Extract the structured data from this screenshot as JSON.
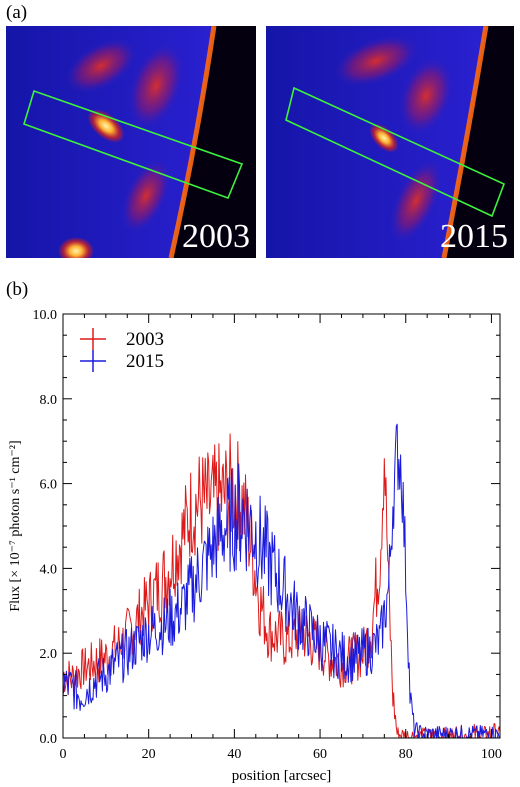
{
  "panel_a": {
    "label": "(a)",
    "images": [
      {
        "year": "2003"
      },
      {
        "year": "2015"
      }
    ],
    "colors": {
      "background": "#050010",
      "map_low": "#1a1ad0",
      "map_mid": "#e02020",
      "map_high": "#fff3a0",
      "box": "#3cf23c"
    }
  },
  "chart_data": {
    "type": "line",
    "panel_label": "(b)",
    "xlabel": "position [arcsec]",
    "ylabel": "Flux [× 10⁻⁷ photon s⁻¹ cm⁻²]",
    "xlim": [
      0,
      102
    ],
    "ylim": [
      0,
      10
    ],
    "x_ticks": [
      0,
      20,
      40,
      60,
      80,
      100
    ],
    "y_ticks": [
      0,
      2,
      4,
      6,
      8,
      10
    ],
    "x_tick_labels": [
      "0",
      "20",
      "40",
      "60",
      "80",
      "100"
    ],
    "y_tick_labels": [
      "0.0",
      "2.0",
      "4.0",
      "6.0",
      "8.0",
      "10.0"
    ],
    "legend": "top-left",
    "grid": false,
    "series": [
      {
        "name": "2003",
        "color": "#dd1a1a",
        "x": [
          0,
          2,
          4,
          6,
          8,
          10,
          12,
          14,
          16,
          18,
          20,
          22,
          24,
          26,
          28,
          30,
          32,
          34,
          36,
          38,
          40,
          42,
          44,
          46,
          48,
          50,
          52,
          54,
          56,
          58,
          60,
          62,
          64,
          66,
          68,
          70,
          72,
          74,
          75,
          76,
          77,
          78,
          80,
          82,
          84,
          86,
          88,
          90,
          92,
          94,
          96,
          98,
          100,
          102
        ],
        "y": [
          1.5,
          1.4,
          1.6,
          1.7,
          1.8,
          1.9,
          2.1,
          2.3,
          2.6,
          2.9,
          3.2,
          3.5,
          3.8,
          4.3,
          4.8,
          5.4,
          5.6,
          5.5,
          5.6,
          5.7,
          5.9,
          5.5,
          4.5,
          3.2,
          2.5,
          2.4,
          2.3,
          2.4,
          2.5,
          2.3,
          2.1,
          1.9,
          1.8,
          1.8,
          1.9,
          2.0,
          2.6,
          4.3,
          6.8,
          3.5,
          1.0,
          0.1,
          0.05,
          0.05,
          0.05,
          0.05,
          0.05,
          0.05,
          0.05,
          0.05,
          0.05,
          0.05,
          0.05,
          0.05
        ],
        "noise": [
          0.5,
          0.5,
          0.5,
          0.5,
          0.6,
          0.6,
          0.6,
          0.6,
          0.7,
          0.7,
          0.8,
          0.9,
          1.0,
          1.0,
          1.1,
          1.2,
          1.3,
          1.3,
          1.4,
          1.4,
          1.4,
          1.3,
          1.1,
          0.9,
          0.7,
          0.7,
          0.7,
          0.7,
          0.7,
          0.7,
          0.6,
          0.6,
          0.6,
          0.6,
          0.6,
          0.6,
          0.8,
          1.0,
          1.2,
          0.8,
          0.5,
          0.2,
          0.2,
          0.2,
          0.2,
          0.2,
          0.2,
          0.2,
          0.3,
          0.2,
          0.3,
          0.2,
          0.4,
          0.2
        ]
      },
      {
        "name": "2015",
        "color": "#1a1add",
        "x": [
          0,
          2,
          4,
          6,
          8,
          10,
          12,
          14,
          16,
          18,
          20,
          22,
          24,
          26,
          28,
          30,
          32,
          34,
          36,
          38,
          40,
          42,
          44,
          46,
          48,
          50,
          52,
          54,
          56,
          58,
          60,
          62,
          64,
          66,
          68,
          70,
          72,
          74,
          76,
          77,
          78,
          79,
          80,
          81,
          82,
          84,
          86,
          88,
          90,
          92,
          94,
          96,
          98,
          100,
          102
        ],
        "y": [
          1.3,
          1.2,
          1.0,
          1.2,
          1.4,
          1.5,
          1.7,
          1.9,
          2.1,
          2.3,
          2.5,
          2.6,
          2.7,
          2.9,
          3.1,
          3.5,
          3.9,
          4.3,
          4.7,
          5.0,
          5.2,
          5.3,
          5.0,
          4.6,
          4.2,
          3.8,
          3.4,
          3.0,
          2.7,
          2.5,
          2.3,
          2.1,
          2.0,
          1.9,
          1.9,
          2.0,
          2.1,
          2.3,
          3.5,
          5.6,
          6.8,
          6.4,
          4.0,
          1.0,
          0.2,
          0.1,
          0.1,
          0.1,
          0.1,
          0.1,
          0.1,
          0.1,
          0.1,
          0.1,
          0.1
        ],
        "noise": [
          0.5,
          0.5,
          0.5,
          0.5,
          0.5,
          0.5,
          0.6,
          0.6,
          0.6,
          0.6,
          0.7,
          0.7,
          0.7,
          0.8,
          0.8,
          0.9,
          1.0,
          1.0,
          1.1,
          1.2,
          1.3,
          1.4,
          1.3,
          1.2,
          1.1,
          1.0,
          0.9,
          0.8,
          0.8,
          0.7,
          0.7,
          0.7,
          0.6,
          0.6,
          0.6,
          0.6,
          0.6,
          0.6,
          0.8,
          0.9,
          1.0,
          1.0,
          0.8,
          0.4,
          0.2,
          0.2,
          0.2,
          0.2,
          0.2,
          0.2,
          0.2,
          0.2,
          0.2,
          0.2,
          0.2
        ]
      }
    ]
  }
}
